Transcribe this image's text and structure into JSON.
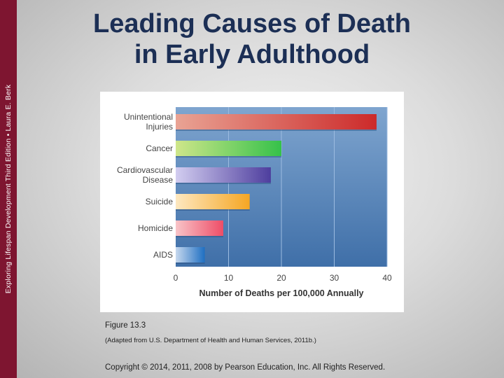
{
  "sidebar": {
    "text": "Exploring Lifespan Development Third Edition • Laura E. Berk"
  },
  "slide": {
    "title_line1": "Leading Causes of Death",
    "title_line2": "in Early Adulthood",
    "figure_label": "Figure 13.3",
    "source": "(Adapted from U.S. Department of Health and Human Services, 2011b.)",
    "copyright": "Copyright © 2014, 2011, 2008 by Pearson Education, Inc. All Rights Reserved."
  },
  "chart_data": {
    "type": "bar",
    "orientation": "horizontal",
    "categories": [
      [
        "Unintentional",
        "Injuries"
      ],
      [
        "Cancer"
      ],
      [
        "Cardiovascular",
        "Disease"
      ],
      [
        "Suicide"
      ],
      [
        "Homicide"
      ],
      [
        "AIDS"
      ]
    ],
    "values": [
      38,
      20,
      18,
      14,
      9,
      5.5
    ],
    "xlabel": "Number of Deaths per 100,000 Annually",
    "xlim": [
      0,
      40
    ],
    "xticks": [
      0,
      10,
      20,
      30,
      40
    ],
    "grid": true,
    "colors": [
      [
        "#e9a394",
        "#cc2a2a"
      ],
      [
        "#cfe68a",
        "#35c14a"
      ],
      [
        "#d2cdf0",
        "#4e3e9e"
      ],
      [
        "#fde8c0",
        "#f5a623"
      ],
      [
        "#f8c4c8",
        "#ee4d67"
      ],
      [
        "#c6d8ee",
        "#1f6fc2"
      ]
    ]
  }
}
